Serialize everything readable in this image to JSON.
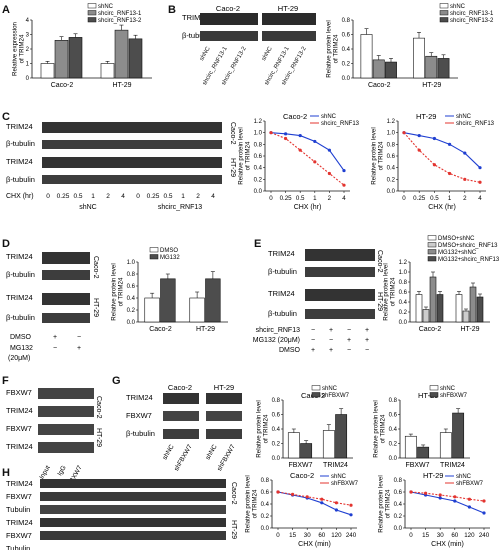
{
  "colors": {
    "red": "#e3342f",
    "blue": "#1f3fd1",
    "gray": "#8c8c8c",
    "dark": "#4d4d4d",
    "black": "#111111"
  },
  "labels": {
    "trim24": "TRIM24",
    "actin": "β-tubulin",
    "fbxw7": "FBXW7",
    "tubulin": "Tubulin",
    "caco": "Caco-2",
    "ht": "HT-29",
    "shnc": "shNC",
    "shcirc1": "shcirc_RNF13-1",
    "shcirc2": "shcirc_RNF13-2",
    "shcirc": "shcirc_RNF13",
    "shfbxw7": "shFBXW7",
    "dmso": "DMSO",
    "mg132": "MG132",
    "mg132_conc": "(20μM)",
    "mg132_full": "MG132 (20μM)",
    "chx_hr": "CHX (hr)",
    "chx_min": "CHX (min)",
    "input": "Input",
    "igg": "IgG",
    "plus": "+",
    "minus": "−"
  },
  "panels": {
    "a": {
      "letter": "A"
    },
    "b": {
      "letter": "B"
    },
    "c": {
      "letter": "C"
    },
    "d": {
      "letter": "D"
    },
    "e": {
      "letter": "E"
    },
    "f": {
      "letter": "F"
    },
    "g": {
      "letter": "G"
    },
    "h": {
      "letter": "H"
    }
  },
  "blots": {
    "c_chx": [
      "0",
      "0.25",
      "0.5",
      "1",
      "2",
      "4",
      "0",
      "0.25",
      "0.5",
      "1",
      "2",
      "4"
    ],
    "d_dmso": [
      "+",
      "−"
    ],
    "d_mg": [
      "−",
      "+"
    ],
    "e_sh": [
      "−",
      "+",
      "−",
      "+"
    ],
    "e_mg": [
      "−",
      "−",
      "+",
      "+"
    ],
    "e_dm": [
      "+",
      "+",
      "−",
      "−"
    ],
    "h_chx": [
      "0",
      "15",
      "30",
      "60",
      "120",
      "240",
      "0",
      "15",
      "30",
      "60",
      "120",
      "240"
    ]
  },
  "chart_data": [
    {
      "id": "A",
      "type": "bar",
      "ylabel": "Relative expression of TRIM24",
      "ylim": [
        0,
        4
      ],
      "yticks": [
        0,
        1,
        2,
        3,
        4
      ],
      "categories": [
        "Caco-2",
        "HT-29"
      ],
      "series": [
        {
          "name": "shNC",
          "values": [
            1.0,
            1.0
          ],
          "errors": [
            0.15,
            0.15
          ]
        },
        {
          "name": "shcirc_RNF13-1",
          "values": [
            2.6,
            3.3
          ],
          "errors": [
            0.25,
            0.35
          ]
        },
        {
          "name": "shcirc_RNF13-2",
          "values": [
            2.8,
            2.7
          ],
          "errors": [
            0.25,
            0.25
          ]
        }
      ]
    },
    {
      "id": "B",
      "type": "bar",
      "ylabel": "Relative protein level of TRIM24",
      "ylim": [
        0,
        0.8
      ],
      "yticks": [
        0.0,
        0.2,
        0.4,
        0.6,
        0.8
      ],
      "categories": [
        "Caco-2",
        "HT-29"
      ],
      "series": [
        {
          "name": "shNC",
          "values": [
            0.6,
            0.55
          ],
          "errors": [
            0.08,
            0.08
          ]
        },
        {
          "name": "shcirc_RNF13-1",
          "values": [
            0.25,
            0.3
          ],
          "errors": [
            0.06,
            0.05
          ]
        },
        {
          "name": "shcirc_RNF13-2",
          "values": [
            0.22,
            0.27
          ],
          "errors": [
            0.05,
            0.05
          ]
        }
      ]
    },
    {
      "id": "C1",
      "type": "line",
      "title": "Caco-2",
      "xlabel": "CHX (hr)",
      "ylabel": "Relative protein level of TRIM24",
      "x": [
        0,
        0.25,
        0.5,
        1,
        2,
        4
      ],
      "xticks": [
        "0",
        "0.25",
        "0.5",
        "1",
        "2",
        "4"
      ],
      "ylim": [
        0,
        1.2
      ],
      "yticks": [
        0.0,
        0.2,
        0.4,
        0.6,
        0.8,
        1.0,
        1.2
      ],
      "series": [
        {
          "name": "shNC",
          "values": [
            1.0,
            0.98,
            0.95,
            0.85,
            0.7,
            0.35
          ]
        },
        {
          "name": "shcirc_RNF13",
          "values": [
            1.0,
            0.9,
            0.7,
            0.5,
            0.3,
            0.1
          ]
        }
      ]
    },
    {
      "id": "C2",
      "type": "line",
      "title": "HT-29",
      "xlabel": "CHX (hr)",
      "ylabel": "Relative protein level of TRIM24",
      "x": [
        0,
        0.25,
        0.5,
        1,
        2,
        4
      ],
      "xticks": [
        "0",
        "0.25",
        "0.5",
        "1",
        "2",
        "4"
      ],
      "ylim": [
        0,
        1.2
      ],
      "yticks": [
        0.0,
        0.2,
        0.4,
        0.6,
        0.8,
        1.0,
        1.2
      ],
      "series": [
        {
          "name": "shNC",
          "values": [
            1.0,
            0.95,
            0.9,
            0.8,
            0.65,
            0.4
          ]
        },
        {
          "name": "shcirc_RNF13",
          "values": [
            1.0,
            0.7,
            0.45,
            0.3,
            0.2,
            0.15
          ]
        }
      ]
    },
    {
      "id": "D",
      "type": "bar",
      "ylabel": "Relative protein level of TRIM24",
      "ylim": [
        0,
        1.0
      ],
      "yticks": [
        0.0,
        0.2,
        0.4,
        0.6,
        0.8,
        1.0
      ],
      "categories": [
        "Caco-2",
        "HT-29"
      ],
      "series": [
        {
          "name": "DMSO",
          "values": [
            0.4,
            0.4
          ],
          "errors": [
            0.08,
            0.1
          ]
        },
        {
          "name": "MG132",
          "values": [
            0.72,
            0.72
          ],
          "errors": [
            0.08,
            0.12
          ]
        }
      ]
    },
    {
      "id": "E",
      "type": "bar",
      "ylabel": "Relative protein level of TRIM24",
      "ylim": [
        0,
        1.2
      ],
      "yticks": [
        0.0,
        0.2,
        0.4,
        0.6,
        0.8,
        1.0,
        1.2
      ],
      "categories": [
        "Caco-2",
        "HT-29"
      ],
      "series": [
        {
          "name": "DMSO+shNC",
          "values": [
            0.55,
            0.55
          ],
          "errors": [
            0.06,
            0.06
          ]
        },
        {
          "name": "DMSO+shcirc_RNF13",
          "values": [
            0.25,
            0.22
          ],
          "errors": [
            0.05,
            0.04
          ]
        },
        {
          "name": "MG132+shNC",
          "values": [
            0.9,
            0.7
          ],
          "errors": [
            0.1,
            0.08
          ]
        },
        {
          "name": "MG132+shcirc_RNF13",
          "values": [
            0.55,
            0.5
          ],
          "errors": [
            0.06,
            0.06
          ]
        }
      ]
    },
    {
      "id": "G1",
      "type": "bar",
      "title": "Caco-2",
      "ylabel": "Relative protein level of TRIM24",
      "ylim": [
        0,
        0.8
      ],
      "yticks": [
        0.0,
        0.2,
        0.4,
        0.6,
        0.8
      ],
      "categories": [
        "FBXW7",
        "TRIM24"
      ],
      "series": [
        {
          "name": "shNC",
          "values": [
            0.35,
            0.38
          ],
          "errors": [
            0.05,
            0.08
          ]
        },
        {
          "name": "shFBXW7",
          "values": [
            0.2,
            0.6
          ],
          "errors": [
            0.04,
            0.08
          ]
        }
      ]
    },
    {
      "id": "G2",
      "type": "bar",
      "title": "HT-29",
      "ylabel": "Relative protein level of TRIM24",
      "ylim": [
        0,
        0.8
      ],
      "yticks": [
        0.0,
        0.2,
        0.4,
        0.6,
        0.8
      ],
      "categories": [
        "FBXW7",
        "TRIM24"
      ],
      "series": [
        {
          "name": "shNC",
          "values": [
            0.3,
            0.35
          ],
          "errors": [
            0.03,
            0.05
          ]
        },
        {
          "name": "shFBXW7",
          "values": [
            0.15,
            0.62
          ],
          "errors": [
            0.03,
            0.06
          ]
        }
      ]
    },
    {
      "id": "H1",
      "type": "line",
      "title": "Caco-2",
      "xlabel": "CHX (min)",
      "ylabel": "Relative protein level of TRIM24",
      "x": [
        0,
        15,
        30,
        60,
        120,
        240
      ],
      "xticks": [
        "0",
        "15",
        "30",
        "60",
        "120",
        "240"
      ],
      "ylim": [
        0,
        0.8
      ],
      "yticks": [
        0.0,
        0.2,
        0.4,
        0.6,
        0.8
      ],
      "series": [
        {
          "name": "shNC",
          "values": [
            0.6,
            0.55,
            0.5,
            0.42,
            0.3,
            0.22
          ]
        },
        {
          "name": "shFBXW7",
          "values": [
            0.6,
            0.56,
            0.52,
            0.48,
            0.42,
            0.38
          ]
        }
      ]
    },
    {
      "id": "H2",
      "type": "line",
      "title": "HT-29",
      "xlabel": "CHX (min)",
      "ylabel": "Relative protein level of TRIM24",
      "x": [
        0,
        15,
        30,
        60,
        120,
        240
      ],
      "xticks": [
        "0",
        "15",
        "30",
        "60",
        "120",
        "240"
      ],
      "ylim": [
        0,
        0.8
      ],
      "yticks": [
        0.0,
        0.2,
        0.4,
        0.6,
        0.8
      ],
      "series": [
        {
          "name": "shNC",
          "values": [
            0.6,
            0.55,
            0.5,
            0.45,
            0.35,
            0.25
          ]
        },
        {
          "name": "shFBXW7",
          "values": [
            0.6,
            0.58,
            0.55,
            0.52,
            0.48,
            0.45
          ]
        }
      ]
    }
  ]
}
